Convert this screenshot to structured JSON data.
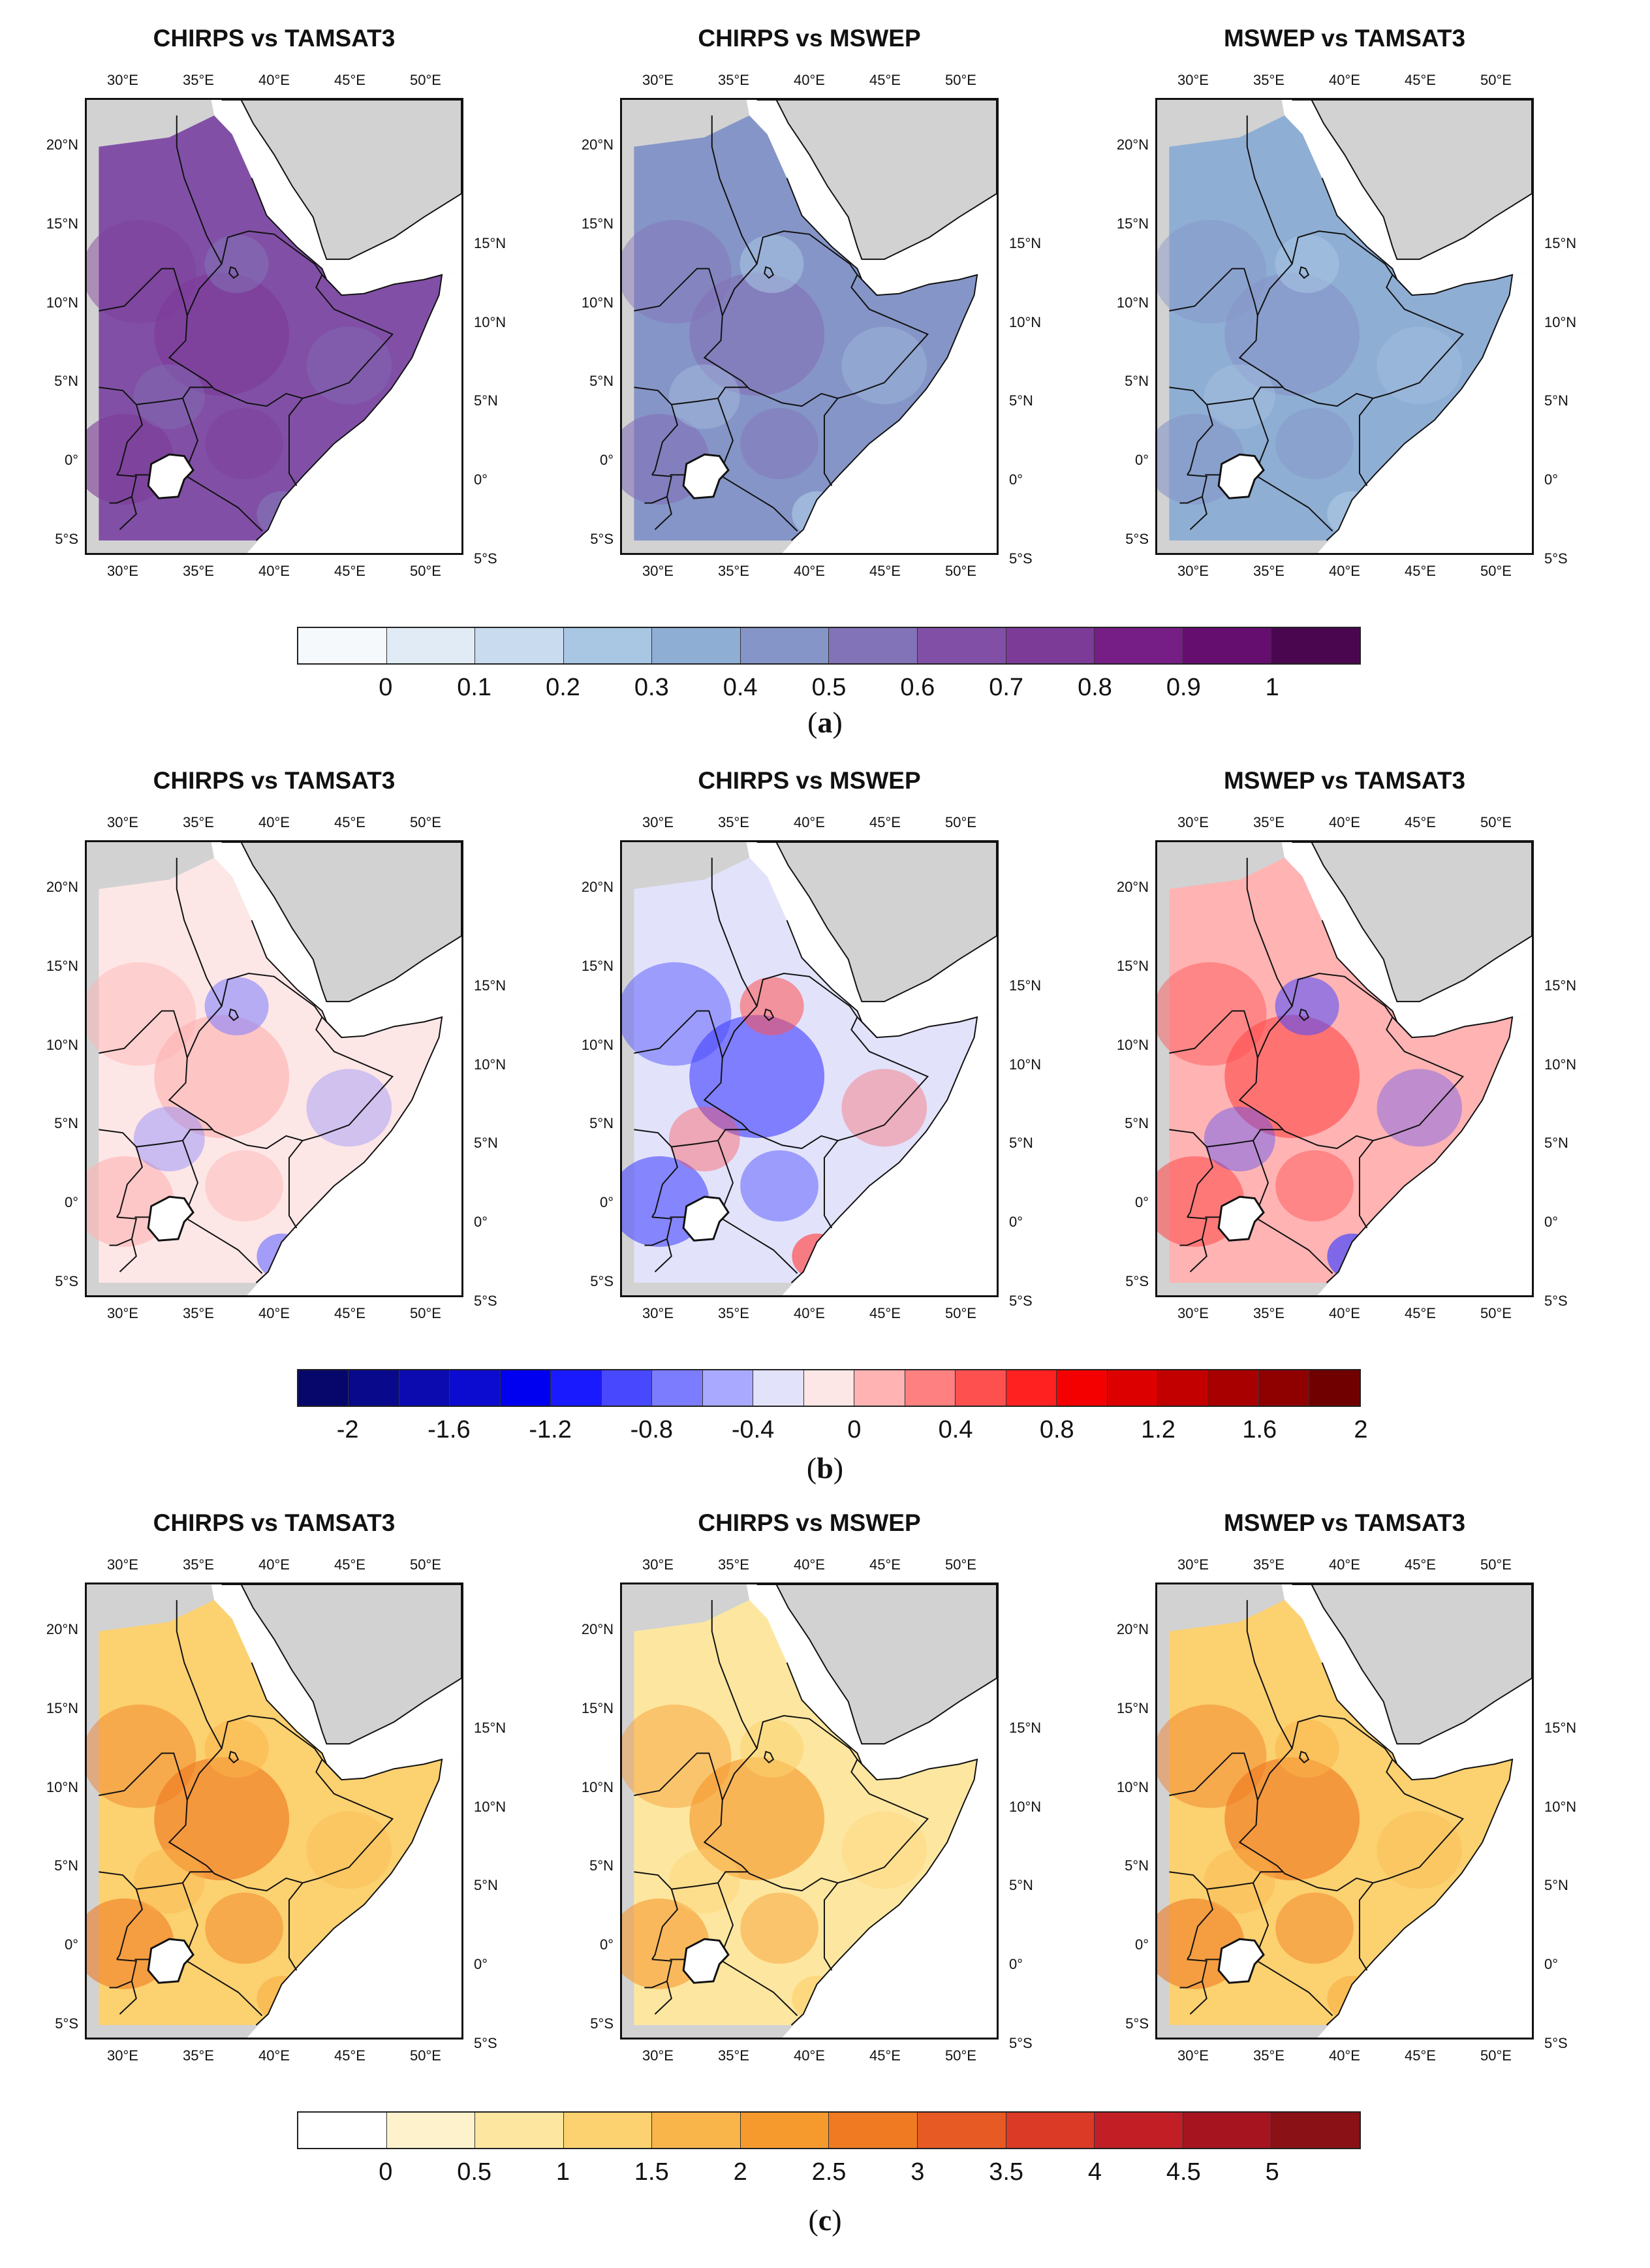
{
  "rows": [
    {
      "label_open": "(",
      "label_letter": "a",
      "label_close": ")",
      "titles": [
        "CHIRPS vs TAMSAT3",
        "CHIRPS vs MSWEP",
        "MSWEP vs TAMSAT3"
      ],
      "colorbar": {
        "colors": [
          "#f6f9fc",
          "#e0ebf5",
          "#c9dbee",
          "#a9c6e3",
          "#8faed4",
          "#8595c7",
          "#8272b7",
          "#8150a6",
          "#7d3b98",
          "#761e86",
          "#660d70",
          "#4a0750"
        ],
        "labels": [
          "0",
          "0.1",
          "0.2",
          "0.3",
          "0.4",
          "0.5",
          "0.6",
          "0.7",
          "0.8",
          "0.9",
          "1"
        ]
      },
      "fills": [
        [
          "#8150a6",
          "#7d3b98",
          "#8272b7"
        ],
        [
          "#8595c7",
          "#8272b7",
          "#a9c6e3"
        ],
        [
          "#8faed4",
          "#8595c7",
          "#a9c6e3"
        ]
      ]
    },
    {
      "label_open": "(",
      "label_letter": "b",
      "label_close": ")",
      "titles": [
        "CHIRPS vs TAMSAT3",
        "CHIRPS vs MSWEP",
        "MSWEP vs TAMSAT3"
      ],
      "colorbar": {
        "colors": [
          "#07076b",
          "#09098c",
          "#0b0bb0",
          "#0c0cd0",
          "#0000f0",
          "#1a1aff",
          "#4848ff",
          "#7c7cff",
          "#a9a9ff",
          "#e2e2fb",
          "#fde6e6",
          "#ffb3b3",
          "#ff8080",
          "#ff5050",
          "#ff2020",
          "#f40000",
          "#dd0000",
          "#c20000",
          "#a80000",
          "#8f0000",
          "#700000"
        ],
        "labels": [
          "-2",
          "-1.6",
          "-1.2",
          "-0.8",
          "-0.4",
          "0",
          "0.4",
          "0.8",
          "1.2",
          "1.6",
          "2"
        ]
      },
      "fills": [
        [
          "#fde6e6",
          "#ffb3b3",
          "#7c7cff"
        ],
        [
          "#e2e2fb",
          "#4848ff",
          "#ff5050"
        ],
        [
          "#ffb3b3",
          "#ff5050",
          "#4848ff"
        ]
      ]
    },
    {
      "label_open": "(",
      "label_letter": "c",
      "label_close": ")",
      "titles": [
        "CHIRPS vs TAMSAT3",
        "CHIRPS vs MSWEP",
        "MSWEP vs TAMSAT3"
      ],
      "colorbar": {
        "colors": [
          "#ffffff",
          "#fdf2cc",
          "#fde7a0",
          "#fcd170",
          "#f9b44a",
          "#f69a2e",
          "#ef7a22",
          "#e75a23",
          "#da3a26",
          "#c11f25",
          "#a5141f",
          "#8a1116"
        ],
        "labels": [
          "0",
          "0.5",
          "1",
          "1.5",
          "2",
          "2.5",
          "3",
          "3.5",
          "4",
          "4.5",
          "5"
        ]
      },
      "fills": [
        [
          "#fcd170",
          "#ef7a22",
          "#f9b44a"
        ],
        [
          "#fde7a0",
          "#f69a2e",
          "#fcd170"
        ],
        [
          "#fcd170",
          "#ef7a22",
          "#f9b44a"
        ]
      ]
    }
  ],
  "axes": {
    "top_lon": [
      "30°E",
      "35°E",
      "40°E",
      "45°E",
      "50°E"
    ],
    "bottom_lon": [
      "30°E",
      "35°E",
      "40°E",
      "45°E",
      "50°E"
    ],
    "left_lat": [
      "20°N",
      "15°N",
      "10°N",
      "5°N",
      "0°",
      "5°S"
    ],
    "right_lat": [
      "15°N",
      "10°N",
      "5°N",
      "0°",
      "5°S"
    ]
  },
  "colors": {
    "land_outside": "#d2d2d2",
    "sea": "#ffffff",
    "border": "#111111"
  },
  "icons": {
    "lake": "lake-victoria-shape"
  }
}
